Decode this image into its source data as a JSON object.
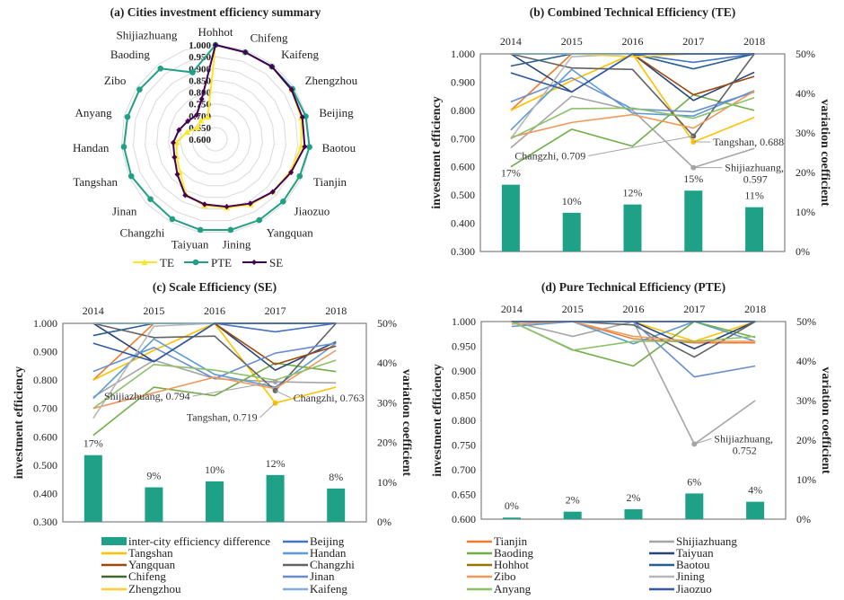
{
  "cities": [
    "Beijing",
    "Tianjin",
    "Shijiazhuang",
    "Tangshan",
    "Handan",
    "Baoding",
    "Taiyuan",
    "Yangquan",
    "Changzhi",
    "Hohhot",
    "Baotou",
    "Chifeng",
    "Jinan",
    "Zibo",
    "Jining",
    "Zhengzhou",
    "Kaifeng",
    "Anyang",
    "Jiaozuo"
  ],
  "city_colors": {
    "Beijing": "#4472C4",
    "Tianjin": "#ED7D31",
    "Shijiazhuang": "#A5A5A5",
    "Tangshan": "#FFC000",
    "Handan": "#5B9BD5",
    "Baoding": "#70AD47",
    "Taiyuan": "#264478",
    "Yangquan": "#9E480E",
    "Changzhi": "#636363",
    "Hohhot": "#997300",
    "Baotou": "#255E91",
    "Chifeng": "#43682B",
    "Jinan": "#698ED0",
    "Zibo": "#F1975A",
    "Jining": "#B7B7B7",
    "Zhengzhou": "#FFCD33",
    "Kaifeng": "#7CAFDD",
    "Anyang": "#8CC168",
    "Jiaozuo": "#335AA1"
  },
  "bar_color": "#1FA187",
  "legend": {
    "bar_label": "inter-city efficiency difference",
    "order": [
      "Beijing",
      "Tianjin",
      "Shijiazhuang",
      "Tangshan",
      "Handan",
      "Baoding",
      "Taiyuan",
      "Yangquan",
      "Changzhi",
      "Hohhot",
      "Baotou",
      "Chifeng",
      "Jinan",
      "Zibo",
      "Jining",
      "Zhengzhou",
      "Kaifeng",
      "Anyang",
      "Jiaozuo"
    ]
  },
  "chart_data": [
    {
      "type": "radar",
      "title": "(a) Cities investment efficiency summary",
      "axes": [
        "Hohhot",
        "Chifeng",
        "Kaifeng",
        "Zhengzhou",
        "Beijing",
        "Baotou",
        "Tianjin",
        "Jiaozuo",
        "Yangquan",
        "Jining",
        "Taiyuan",
        "Changzhi",
        "Jinan",
        "Tangshan",
        "Handan",
        "Anyang",
        "Zibo",
        "Baoding",
        "Shijiazhuang"
      ],
      "range": [
        0.6,
        1.0
      ],
      "ticks": [
        "0.600",
        "0.650",
        "0.700",
        "0.750",
        "0.800",
        "0.850",
        "0.900",
        "0.950",
        "1.000"
      ],
      "series": [
        {
          "name": "TE",
          "color": "#FDE725",
          "values": [
            1.0,
            0.99,
            0.99,
            0.985,
            0.975,
            0.965,
            0.945,
            0.93,
            0.915,
            0.895,
            0.885,
            0.865,
            0.805,
            0.78,
            0.765,
            0.725,
            0.69,
            0.7,
            0.7
          ]
        },
        {
          "name": "PTE",
          "color": "#21A085",
          "values": [
            1.0,
            0.99,
            0.99,
            0.99,
            0.995,
            1.0,
            0.99,
            0.99,
            0.99,
            0.99,
            0.99,
            0.985,
            0.975,
            0.99,
            0.99,
            0.985,
            0.985,
            0.98,
            0.9
          ]
        },
        {
          "name": "SE",
          "color": "#440154",
          "values": [
            1.0,
            0.99,
            0.99,
            0.985,
            0.98,
            0.98,
            0.95,
            0.93,
            0.91,
            0.89,
            0.88,
            0.87,
            0.82,
            0.79,
            0.78,
            0.76,
            0.74,
            0.73,
            0.78
          ]
        }
      ],
      "legend": [
        "TE",
        "PTE",
        "SE"
      ]
    },
    {
      "type": "line+bar",
      "title": "(b) Combined Technical Efficiency (TE)",
      "categories": [
        "2014",
        "2015",
        "2016",
        "2017",
        "2018"
      ],
      "ylabel": "investment efficiency",
      "y2label": "variation coefficient",
      "ylim": [
        0.3,
        1.0
      ],
      "yticks": [
        "0.300",
        "0.400",
        "0.500",
        "0.600",
        "0.700",
        "0.800",
        "0.900",
        "1.000"
      ],
      "y2lim": [
        0,
        50
      ],
      "y2ticks": [
        "0%",
        "10%",
        "20%",
        "30%",
        "40%",
        "50%"
      ],
      "bars": [
        16.9,
        9.8,
        11.9,
        15.4,
        11.2
      ],
      "bar_labels": [
        "17%",
        "10%",
        "12%",
        "15%",
        "11%"
      ],
      "series": {
        "Beijing": [
          1,
          1,
          1,
          0.97,
          1
        ],
        "Tianjin": [
          0.8,
          1,
          1,
          1,
          1
        ],
        "Shijiazhuang": [
          0.667,
          0.85,
          0.8,
          0.597,
          0.665
        ],
        "Tangshan": [
          0.8,
          0.905,
          1,
          0.688,
          0.775
        ],
        "Handan": [
          0.73,
          0.945,
          0.79,
          0.78,
          0.87
        ],
        "Baoding": [
          0.6,
          0.733,
          0.673,
          0.855,
          0.8
        ],
        "Taiyuan": [
          1,
          0.865,
          1,
          0.835,
          0.935
        ],
        "Yangquan": [
          1,
          1,
          1,
          0.855,
          0.92
        ],
        "Changzhi": [
          1,
          0.95,
          0.945,
          0.709,
          1
        ],
        "Hohhot": [
          1,
          1,
          1,
          1,
          1
        ],
        "Baotou": [
          0.957,
          1,
          1,
          0.947,
          1
        ],
        "Chifeng": [
          1,
          1,
          1,
          1,
          1
        ],
        "Jinan": [
          0.83,
          0.915,
          0.805,
          0.795,
          0.865
        ],
        "Zibo": [
          0.705,
          0.757,
          0.785,
          0.737,
          0.868
        ],
        "Jining": [
          0.7,
          0.99,
          1,
          1,
          1
        ],
        "Zhengzhou": [
          1,
          1,
          0.99,
          1,
          1
        ],
        "Kaifeng": [
          1,
          1,
          1,
          1,
          1
        ],
        "Anyang": [
          0.7,
          0.806,
          0.808,
          0.772,
          0.845
        ],
        "Jiaozuo": [
          0.933,
          0.865,
          1,
          1,
          1
        ]
      },
      "annotations": [
        {
          "text": "Tangshan, 0.688",
          "city": "Tangshan",
          "year": "2017"
        },
        {
          "text": "Changzhi, 0.709",
          "city": "Changzhi",
          "year": "2017"
        },
        {
          "text": "Shijiazhuang,",
          "text2": "0.597",
          "city": "Shijiazhuang",
          "year": "2017"
        }
      ]
    },
    {
      "type": "line+bar",
      "title": "(c) Scale Efficiency (SE)",
      "categories": [
        "2014",
        "2015",
        "2016",
        "2017",
        "2018"
      ],
      "ylabel": "investment efficiency",
      "y2label": "variation coefficient",
      "ylim": [
        0.3,
        1.0
      ],
      "yticks": [
        "0.300",
        "0.400",
        "0.500",
        "0.600",
        "0.700",
        "0.800",
        "0.900",
        "1.000"
      ],
      "y2lim": [
        0,
        50
      ],
      "y2ticks": [
        "0%",
        "10%",
        "20%",
        "30%",
        "40%",
        "50%"
      ],
      "bars": [
        16.8,
        8.7,
        10.2,
        11.8,
        8.4
      ],
      "bar_labels": [
        "17%",
        "9%",
        "10%",
        "12%",
        "8%"
      ],
      "series": {
        "Beijing": [
          1,
          1,
          1,
          0.97,
          1
        ],
        "Tianjin": [
          0.8,
          1,
          1,
          1,
          1
        ],
        "Shijiazhuang": [
          0.74,
          0.87,
          0.805,
          0.794,
          0.79
        ],
        "Tangshan": [
          0.8,
          0.905,
          1,
          0.719,
          0.775
        ],
        "Handan": [
          0.735,
          0.945,
          0.82,
          0.775,
          0.93
        ],
        "Baoding": [
          0.605,
          0.775,
          0.745,
          0.86,
          0.83
        ],
        "Taiyuan": [
          1,
          0.865,
          1,
          0.835,
          0.935
        ],
        "Yangquan": [
          1,
          1,
          1,
          0.855,
          0.92
        ],
        "Changzhi": [
          1,
          0.95,
          0.955,
          0.763,
          1
        ],
        "Hohhot": [
          1,
          1,
          1,
          1,
          1
        ],
        "Baotou": [
          0.957,
          1,
          1,
          1,
          1
        ],
        "Chifeng": [
          1,
          1,
          1,
          1,
          1
        ],
        "Jinan": [
          0.83,
          0.915,
          0.805,
          0.895,
          0.93
        ],
        "Zibo": [
          0.7,
          0.755,
          0.81,
          0.77,
          0.905
        ],
        "Jining": [
          0.665,
          0.99,
          1,
          1,
          1
        ],
        "Zhengzhou": [
          1,
          1,
          1,
          1,
          1
        ],
        "Kaifeng": [
          1,
          1,
          1,
          1,
          1
        ],
        "Anyang": [
          0.7,
          0.855,
          0.835,
          0.8,
          0.87
        ],
        "Jiaozuo": [
          0.93,
          0.865,
          1,
          1,
          1
        ]
      },
      "annotations": [
        {
          "text": "Shijiazhuang, 0.794",
          "city": "Shijiazhuang",
          "year": "2017"
        },
        {
          "text": "Changzhi, 0.763",
          "city": "Changzhi",
          "year": "2017"
        },
        {
          "text": "Tangshan, 0.719",
          "city": "Tangshan",
          "year": "2017"
        }
      ]
    },
    {
      "type": "line+bar",
      "title": "(d) Pure Technical Efficiency (PTE)",
      "categories": [
        "2014",
        "2015",
        "2016",
        "2017",
        "2018"
      ],
      "ylabel": "investment efficiency",
      "y2label": "variation coefficient",
      "ylim": [
        0.6,
        1.0
      ],
      "yticks": [
        "0.600",
        "0.650",
        "0.700",
        "0.750",
        "0.800",
        "0.850",
        "0.900",
        "0.950",
        "1.000"
      ],
      "y2lim": [
        0,
        50
      ],
      "y2ticks": [
        "0%",
        "10%",
        "20%",
        "30%",
        "40%",
        "50%"
      ],
      "bars": [
        0.4,
        1.9,
        2.5,
        6.5,
        4.4
      ],
      "bar_labels": [
        "0%",
        "2%",
        "2%",
        "6%",
        "4%"
      ],
      "series": {
        "Beijing": [
          1,
          1,
          1,
          1,
          1
        ],
        "Tianjin": [
          0.995,
          1,
          0.965,
          0.957,
          0.957
        ],
        "Shijiazhuang": [
          1,
          0.97,
          1,
          0.752,
          0.84
        ],
        "Tangshan": [
          1,
          1,
          1,
          0.96,
          1
        ],
        "Handan": [
          0.99,
          1,
          0.955,
          1,
          0.96
        ],
        "Baoding": [
          1,
          0.943,
          0.91,
          1,
          0.968
        ],
        "Taiyuan": [
          1,
          1,
          1,
          0.945,
          1
        ],
        "Yangquan": [
          1,
          1,
          1,
          1,
          1
        ],
        "Changzhi": [
          1,
          1,
          0.993,
          0.928,
          1
        ],
        "Hohhot": [
          1,
          1,
          1,
          1,
          1
        ],
        "Baotou": [
          1,
          1,
          1,
          1,
          1
        ],
        "Chifeng": [
          1,
          1,
          1,
          1,
          1
        ],
        "Jinan": [
          1,
          1,
          1,
          0.888,
          0.91
        ],
        "Zibo": [
          0.995,
          1,
          0.97,
          0.96,
          0.96
        ],
        "Jining": [
          1,
          1,
          1,
          1,
          1
        ],
        "Zhengzhou": [
          1,
          1,
          1,
          1,
          1
        ],
        "Kaifeng": [
          1,
          1,
          1,
          1,
          1
        ],
        "Anyang": [
          1,
          0.942,
          0.96,
          0.96,
          0.97
        ],
        "Jiaozuo": [
          1,
          1,
          1,
          1,
          1
        ]
      },
      "annotations": [
        {
          "text": "Shijiazhuang,",
          "text2": "0.752",
          "city": "Shijiazhuang",
          "year": "2017"
        }
      ]
    }
  ]
}
